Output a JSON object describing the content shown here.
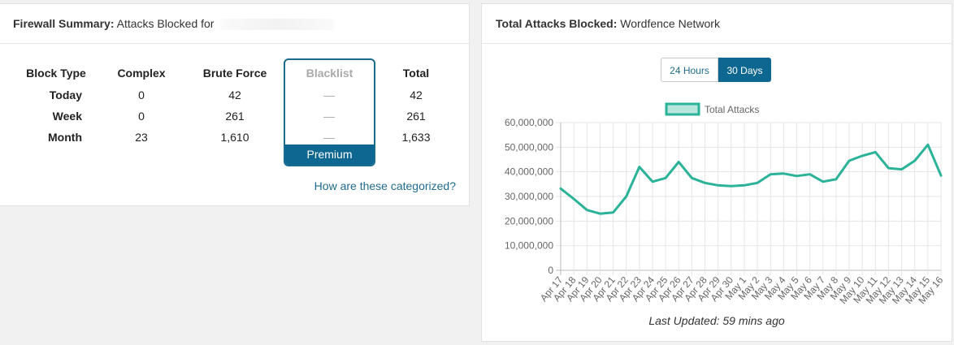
{
  "firewall": {
    "title_bold": "Firewall Summary:",
    "title_rest": "Attacks Blocked for",
    "columns": [
      "Block Type",
      "Complex",
      "Brute Force",
      "Blacklist",
      "Total"
    ],
    "rows": [
      {
        "label": "Today",
        "complex": "0",
        "brute": "42",
        "blacklist": "—",
        "total": "42"
      },
      {
        "label": "Week",
        "complex": "0",
        "brute": "261",
        "blacklist": "—",
        "total": "261"
      },
      {
        "label": "Month",
        "complex": "23",
        "brute": "1,610",
        "blacklist": "—",
        "total": "1,633"
      }
    ],
    "premium_label": "Premium",
    "categorized_link": "How are these categorized?"
  },
  "network": {
    "title_bold": "Total Attacks Blocked:",
    "title_rest": "Wordfence Network",
    "toggle_24h": "24 Hours",
    "toggle_30d": "30 Days",
    "last_updated": "Last Updated: 59 mins ago"
  },
  "colors": {
    "accent": "#0e6791",
    "line": "#2bb39a",
    "legend_fill": "#b7e6dc"
  },
  "chart_data": {
    "type": "line",
    "categories": [
      "Apr 17",
      "Apr 18",
      "Apr 19",
      "Apr 20",
      "Apr 21",
      "Apr 22",
      "Apr 23",
      "Apr 24",
      "Apr 25",
      "Apr 26",
      "Apr 27",
      "Apr 28",
      "Apr 29",
      "Apr 30",
      "May 1",
      "May 2",
      "May 3",
      "May 4",
      "May 5",
      "May 6",
      "May 7",
      "May 8",
      "May 9",
      "May 10",
      "May 11",
      "May 12",
      "May 13",
      "May 14",
      "May 15",
      "May 16"
    ],
    "series": [
      {
        "name": "Total Attacks",
        "values": [
          33200000,
          29000000,
          24500000,
          23000000,
          23500000,
          30000000,
          42000000,
          36000000,
          37500000,
          44000000,
          37500000,
          35500000,
          34500000,
          34200000,
          34500000,
          35500000,
          39000000,
          39300000,
          38300000,
          39000000,
          36000000,
          37000000,
          44500000,
          46500000,
          48000000,
          41500000,
          41000000,
          44500000,
          51000000,
          38500000
        ]
      }
    ],
    "yticks": [
      "60,000,000",
      "50,000,000",
      "40,000,000",
      "30,000,000",
      "20,000,000",
      "10,000,000",
      "0"
    ],
    "ylim": [
      0,
      60000000
    ],
    "grid": true,
    "legend": "top-center"
  }
}
